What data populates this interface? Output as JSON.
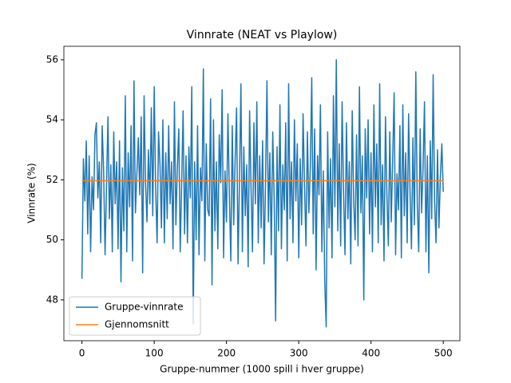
{
  "chart_data": {
    "type": "line",
    "title": "Vinnrate (NEAT vs Playlow)",
    "xlabel": "Gruppe-nummer (1000 spill i hver gruppe)",
    "ylabel": "Vinnrate (%)",
    "xlim": [
      -25,
      523
    ],
    "ylim": [
      46.64,
      56.45
    ],
    "xticks": [
      0,
      100,
      200,
      300,
      400,
      500
    ],
    "yticks": [
      48,
      50,
      52,
      54,
      56
    ],
    "legend": "lower left",
    "series": [
      {
        "name": "Gruppe-vinnrate",
        "color": "#1f77b4",
        "x": [
          0,
          2,
          4,
          6,
          8,
          10,
          12,
          14,
          16,
          18,
          20,
          22,
          24,
          26,
          28,
          30,
          32,
          34,
          36,
          38,
          40,
          42,
          44,
          46,
          48,
          50,
          52,
          54,
          56,
          58,
          60,
          62,
          64,
          66,
          68,
          70,
          72,
          74,
          76,
          78,
          80,
          82,
          84,
          86,
          88,
          90,
          92,
          94,
          96,
          98,
          100,
          102,
          104,
          106,
          108,
          110,
          112,
          114,
          116,
          118,
          120,
          122,
          124,
          126,
          128,
          130,
          132,
          134,
          136,
          138,
          140,
          142,
          144,
          146,
          148,
          150,
          152,
          154,
          156,
          158,
          160,
          162,
          164,
          166,
          168,
          170,
          172,
          174,
          176,
          178,
          180,
          182,
          184,
          186,
          188,
          190,
          192,
          194,
          196,
          198,
          200,
          202,
          204,
          206,
          208,
          210,
          212,
          214,
          216,
          218,
          220,
          222,
          224,
          226,
          228,
          230,
          232,
          234,
          236,
          238,
          240,
          242,
          244,
          246,
          248,
          250,
          252,
          254,
          256,
          258,
          260,
          262,
          264,
          266,
          268,
          270,
          272,
          274,
          276,
          278,
          280,
          282,
          284,
          286,
          288,
          290,
          292,
          294,
          296,
          298,
          300,
          302,
          304,
          306,
          308,
          310,
          312,
          314,
          316,
          318,
          320,
          322,
          324,
          326,
          328,
          330,
          332,
          334,
          336,
          338,
          340,
          342,
          344,
          346,
          348,
          350,
          352,
          354,
          356,
          358,
          360,
          362,
          364,
          366,
          368,
          370,
          372,
          374,
          376,
          378,
          380,
          382,
          384,
          386,
          388,
          390,
          392,
          394,
          396,
          398,
          400,
          402,
          404,
          406,
          408,
          410,
          412,
          414,
          416,
          418,
          420,
          422,
          424,
          426,
          428,
          430,
          432,
          434,
          436,
          438,
          440,
          442,
          444,
          446,
          448,
          450,
          452,
          454,
          456,
          458,
          460,
          462,
          464,
          466,
          468,
          470,
          472,
          474,
          476,
          478,
          480,
          482,
          484,
          486,
          488,
          490,
          492,
          494,
          496,
          498,
          500
        ],
        "values": [
          48.7,
          52.7,
          51.3,
          53.3,
          50.2,
          52.8,
          49.6,
          52.1,
          51.0,
          53.5,
          53.9,
          51.4,
          52.6,
          49.9,
          53.8,
          52.3,
          49.5,
          51.8,
          54.1,
          50.7,
          52.5,
          49.6,
          53.6,
          51.2,
          52.6,
          49.7,
          53.3,
          48.6,
          52.4,
          50.3,
          54.8,
          49.6,
          52.9,
          51.1,
          53.8,
          49.3,
          55.3,
          50.9,
          52.2,
          53.4,
          51.5,
          54.1,
          48.9,
          54.8,
          51.9,
          50.6,
          53.0,
          51.2,
          54.4,
          50.8,
          55.1,
          51.7,
          49.9,
          53.6,
          52.5,
          50.4,
          54.0,
          49.9,
          52.9,
          50.7,
          53.8,
          51.2,
          52.6,
          49.7,
          54.6,
          50.5,
          52.4,
          53.7,
          49.6,
          51.9,
          54.3,
          50.2,
          52.8,
          49.9,
          53.1,
          51.4,
          55.1,
          47.2,
          52.6,
          50.0,
          53.8,
          49.5,
          52.4,
          51.3,
          55.7,
          49.3,
          53.2,
          51.0,
          50.8,
          54.7,
          48.5,
          54.0,
          50.3,
          52.6,
          49.7,
          53.5,
          51.9,
          55.0,
          49.4,
          52.3,
          50.6,
          54.2,
          51.5,
          49.3,
          53.8,
          50.5,
          52.7,
          54.4,
          49.2,
          52.0,
          55.2,
          49.6,
          53.1,
          50.8,
          52.5,
          49.1,
          54.3,
          51.7,
          49.6,
          53.9,
          51.2,
          54.6,
          49.9,
          52.8,
          50.4,
          53.3,
          49.2,
          51.8,
          55.3,
          50.6,
          52.9,
          49.5,
          53.6,
          51.4,
          47.3,
          53.1,
          50.3,
          54.5,
          49.7,
          52.5,
          51.0,
          53.9,
          49.3,
          55.2,
          50.7,
          52.6,
          49.9,
          54.0,
          51.3,
          53.2,
          49.4,
          52.7,
          50.5,
          54.2,
          51.8,
          49.8,
          53.6,
          50.9,
          52.4,
          55.4,
          50.2,
          53.7,
          49.0,
          52.8,
          51.5,
          54.5,
          49.6,
          52.3,
          48.6,
          47.1,
          53.6,
          50.4,
          52.7,
          49.4,
          54.8,
          51.1,
          56.0,
          50.3,
          53.2,
          49.8,
          54.6,
          51.6,
          49.5,
          53.9,
          50.7,
          52.6,
          49.2,
          54.3,
          51.3,
          50.0,
          53.5,
          49.8,
          55.1,
          50.9,
          52.8,
          48.0,
          53.7,
          51.4,
          54.0,
          50.2,
          52.9,
          49.6,
          54.5,
          51.1,
          53.2,
          49.9,
          55.2,
          50.5,
          52.5,
          49.3,
          54.1,
          51.5,
          49.8,
          53.6,
          50.6,
          52.7,
          54.9,
          49.5,
          52.2,
          51.0,
          53.8,
          49.4,
          54.5,
          50.8,
          52.9,
          49.9,
          54.2,
          51.6,
          49.7,
          53.4,
          50.5,
          55.6,
          51.2,
          49.6,
          53.7,
          50.9,
          52.4,
          54.6,
          49.6,
          52.8,
          48.9,
          53.3,
          50.7,
          55.5,
          51.3,
          49.9,
          53.0,
          50.4,
          52.1,
          53.2,
          51.6
        ]
      },
      {
        "name": "Gjennomsnitt",
        "color": "#ff7f0e",
        "x": [
          0,
          500
        ],
        "values": [
          51.97,
          51.97
        ]
      }
    ]
  }
}
